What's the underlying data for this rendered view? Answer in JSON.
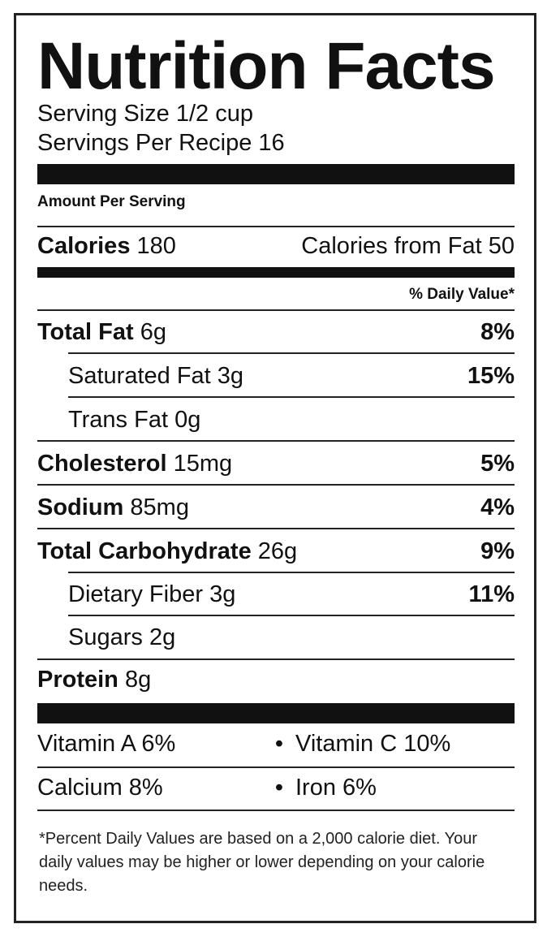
{
  "title": "Nutrition Facts",
  "serving_size": "Serving Size 1/2 cup",
  "servings_per": "Servings Per Recipe 16",
  "amount_per_serving": "Amount Per Serving",
  "calories": {
    "label": "Calories",
    "value": "180",
    "from_fat": "Calories from Fat 50"
  },
  "daily_value_header": "% Daily Value*",
  "nutrients": [
    {
      "name": "Total Fat",
      "amount": "6g",
      "pct": "8%"
    },
    {
      "name": "Saturated Fat",
      "amount": "3g",
      "pct": "15%"
    },
    {
      "name": "Trans Fat",
      "amount": "0g",
      "pct": ""
    },
    {
      "name": "Cholesterol",
      "amount": "15mg",
      "pct": "5%"
    },
    {
      "name": "Sodium",
      "amount": "85mg",
      "pct": "4%"
    },
    {
      "name": "Total Carbohydrate",
      "amount": "26g",
      "pct": "9%"
    },
    {
      "name": "Dietary Fiber",
      "amount": "3g",
      "pct": "11%"
    },
    {
      "name": "Sugars",
      "amount": "2g",
      "pct": ""
    },
    {
      "name": "Protein",
      "amount": "8g",
      "pct": ""
    }
  ],
  "vitamins": [
    {
      "left": "Vitamin A 6%",
      "right": "Vitamin C 10%"
    },
    {
      "left": "Calcium 8%",
      "right": "Iron 6%"
    }
  ],
  "bullet": "•",
  "footnote": "*Percent Daily Values are based on a 2,000 calorie diet. Your daily values may be higher or lower depending on your calorie needs."
}
